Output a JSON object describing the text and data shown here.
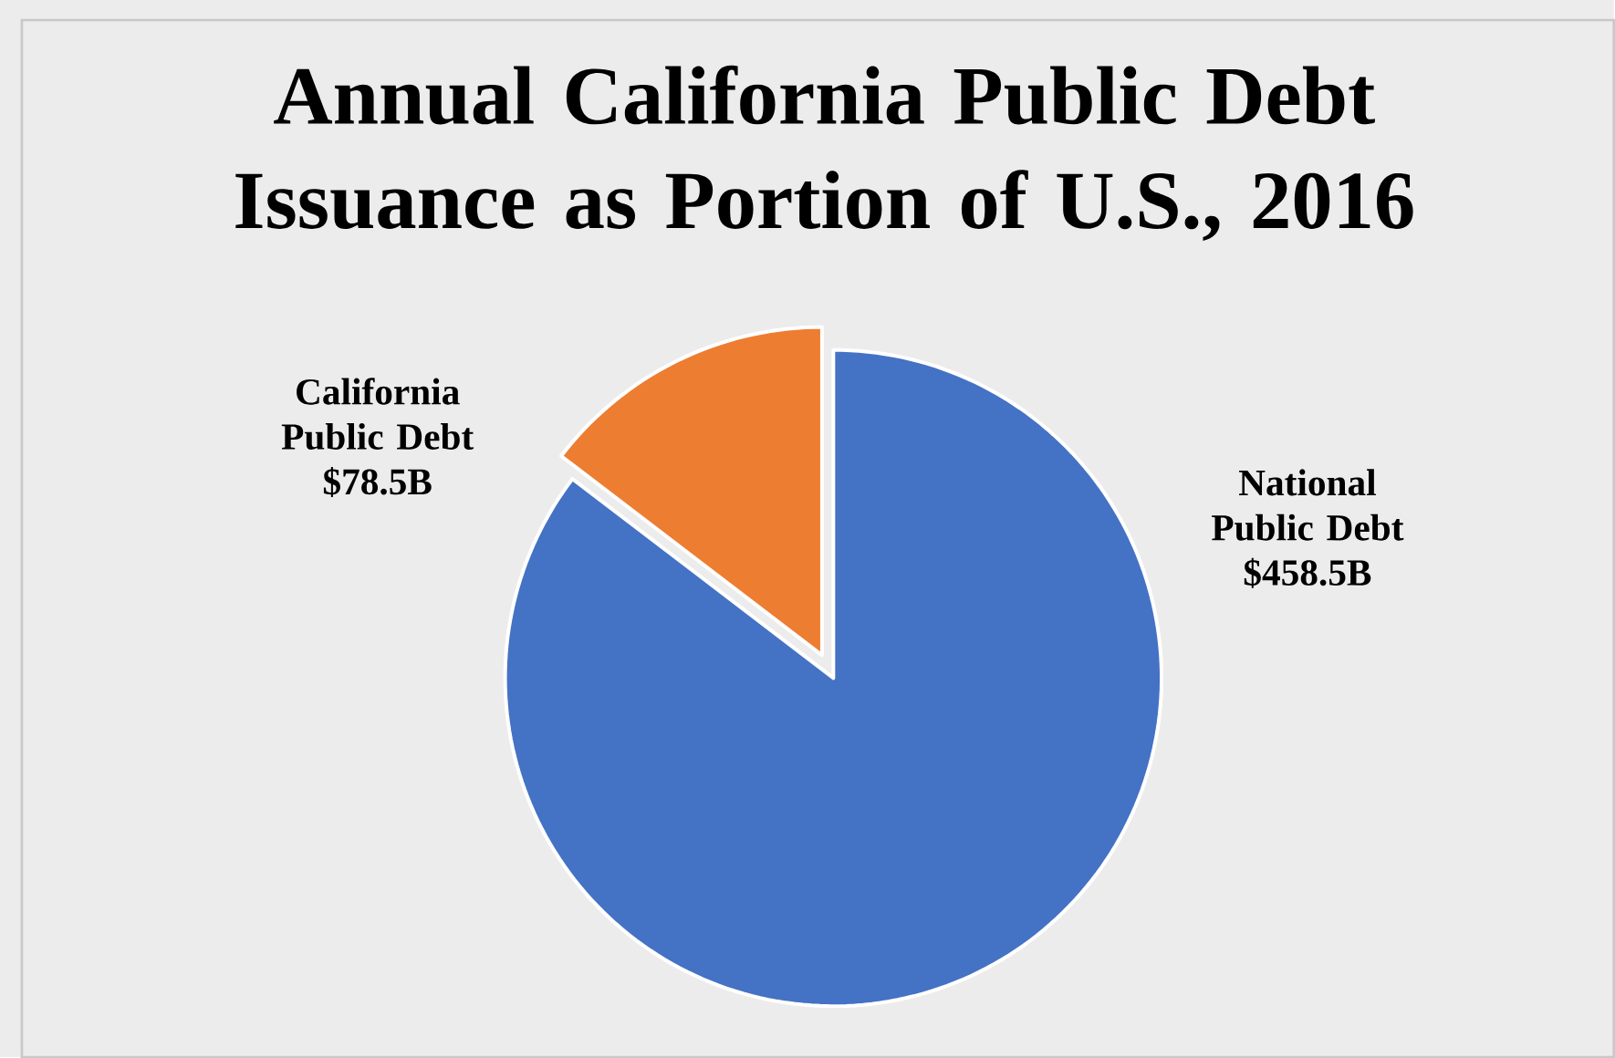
{
  "chart_data": {
    "type": "pie",
    "title": "Annual California Public Debt Issuance as Portion of U.S., 2016",
    "categories": [
      "National Public Debt",
      "California Public Debt"
    ],
    "values": [
      458.5,
      78.5
    ],
    "value_labels": [
      "$458.5B",
      "$78.5B"
    ],
    "colors": [
      "#4472c4",
      "#ed7d31"
    ]
  }
}
